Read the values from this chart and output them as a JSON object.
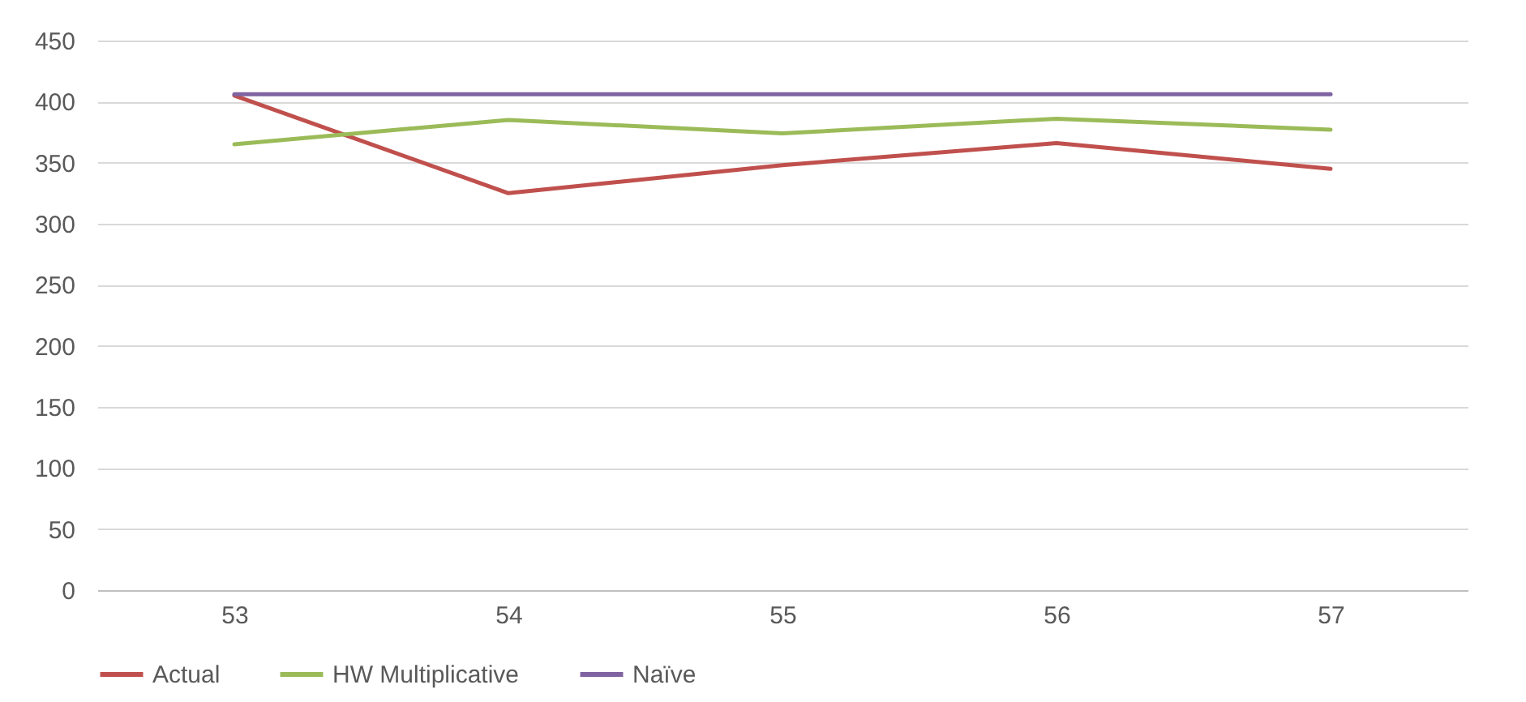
{
  "chart_data": {
    "type": "line",
    "categories": [
      "53",
      "54",
      "55",
      "56",
      "57"
    ],
    "series": [
      {
        "name": "Actual",
        "color": "#c0504d",
        "values": [
          405,
          325,
          348,
          366,
          345
        ]
      },
      {
        "name": "HW Multiplicative",
        "color": "#9bbb59",
        "values": [
          365,
          385,
          374,
          386,
          377
        ]
      },
      {
        "name": "Naïve",
        "color": "#8064a2",
        "values": [
          406,
          406,
          406,
          406,
          406
        ]
      }
    ],
    "ylim": [
      0,
      450
    ],
    "yticks": [
      0,
      50,
      100,
      150,
      200,
      250,
      300,
      350,
      400,
      450
    ],
    "grid": "y",
    "legend": "bottom",
    "marker": "none",
    "line_style": "solid"
  }
}
